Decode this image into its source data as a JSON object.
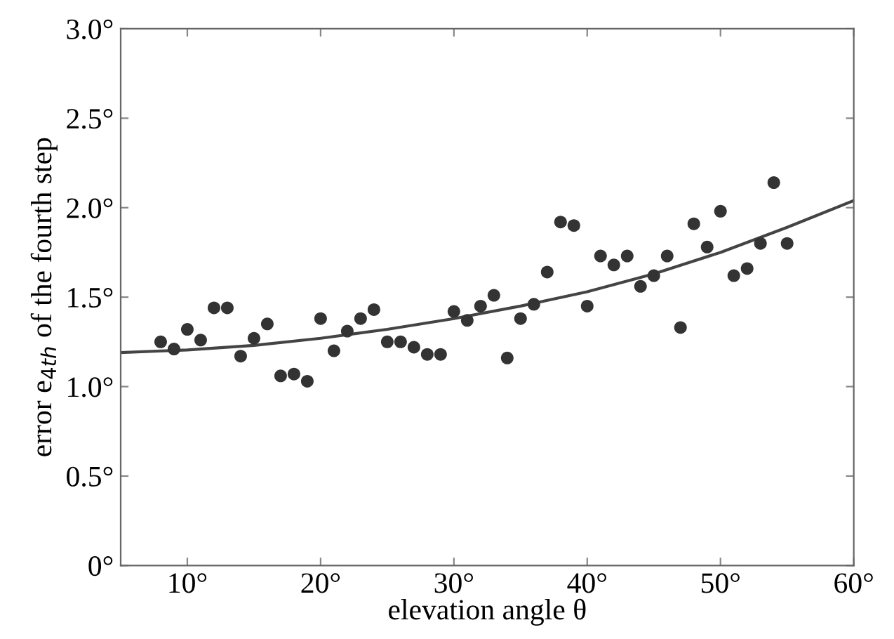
{
  "chart_data": {
    "type": "scatter",
    "xlabel": "elevation angle θ",
    "ylabel": "error e$_{4th}$ of the fourth step",
    "series": [
      {
        "color": "#333333",
        "marker": "circle",
        "x": [
          8,
          9,
          10,
          11,
          12,
          13,
          14,
          15,
          16,
          17,
          18,
          19,
          20,
          21,
          22,
          23,
          24,
          25,
          26,
          27,
          28,
          29,
          30,
          31,
          32,
          33,
          34,
          35,
          36,
          37,
          38,
          39,
          40,
          41,
          42,
          43,
          44,
          45,
          46,
          47,
          48,
          49,
          50,
          51,
          52,
          53,
          54,
          55
        ],
        "values": [
          1.25,
          1.21,
          1.32,
          1.26,
          1.44,
          1.44,
          1.17,
          1.27,
          1.35,
          1.06,
          1.07,
          1.03,
          1.38,
          1.2,
          1.31,
          1.38,
          1.43,
          1.25,
          1.25,
          1.22,
          1.18,
          1.18,
          1.42,
          1.37,
          1.45,
          1.51,
          1.16,
          1.38,
          1.46,
          1.64,
          1.92,
          1.9,
          1.45,
          1.73,
          1.68,
          1.73,
          1.56,
          1.62,
          1.73,
          1.33,
          1.91,
          1.78,
          1.98,
          1.62,
          1.66,
          1.8,
          2.14,
          1.8
        ]
      },
      {
        "type": "line",
        "color": "#444444",
        "marker": "none",
        "x": [
          5,
          10,
          15,
          20,
          25,
          30,
          35,
          40,
          45,
          50,
          55,
          60
        ],
        "values": [
          1.19,
          1.205,
          1.23,
          1.27,
          1.32,
          1.38,
          1.45,
          1.53,
          1.63,
          1.75,
          1.89,
          2.04
        ]
      }
    ],
    "xlim": [
      5,
      60
    ],
    "ylim": [
      0,
      3
    ],
    "xticks": [
      {
        "value": 10,
        "label": "10°"
      },
      {
        "value": 20,
        "label": "20°"
      },
      {
        "value": 30,
        "label": "30°"
      },
      {
        "value": 40,
        "label": "40°"
      },
      {
        "value": 50,
        "label": "50°"
      },
      {
        "value": 60,
        "label": "60°"
      }
    ],
    "yticks": [
      {
        "value": 0,
        "label": "0°"
      },
      {
        "value": 0.5,
        "label": "0.5°"
      },
      {
        "value": 1.0,
        "label": "1.0°"
      },
      {
        "value": 1.5,
        "label": "1.5°"
      },
      {
        "value": 2.0,
        "label": "2.0°"
      },
      {
        "value": 2.5,
        "label": "2.5°"
      },
      {
        "value": 3.0,
        "label": "3.0°"
      }
    ],
    "grid": false,
    "legend": false
  }
}
